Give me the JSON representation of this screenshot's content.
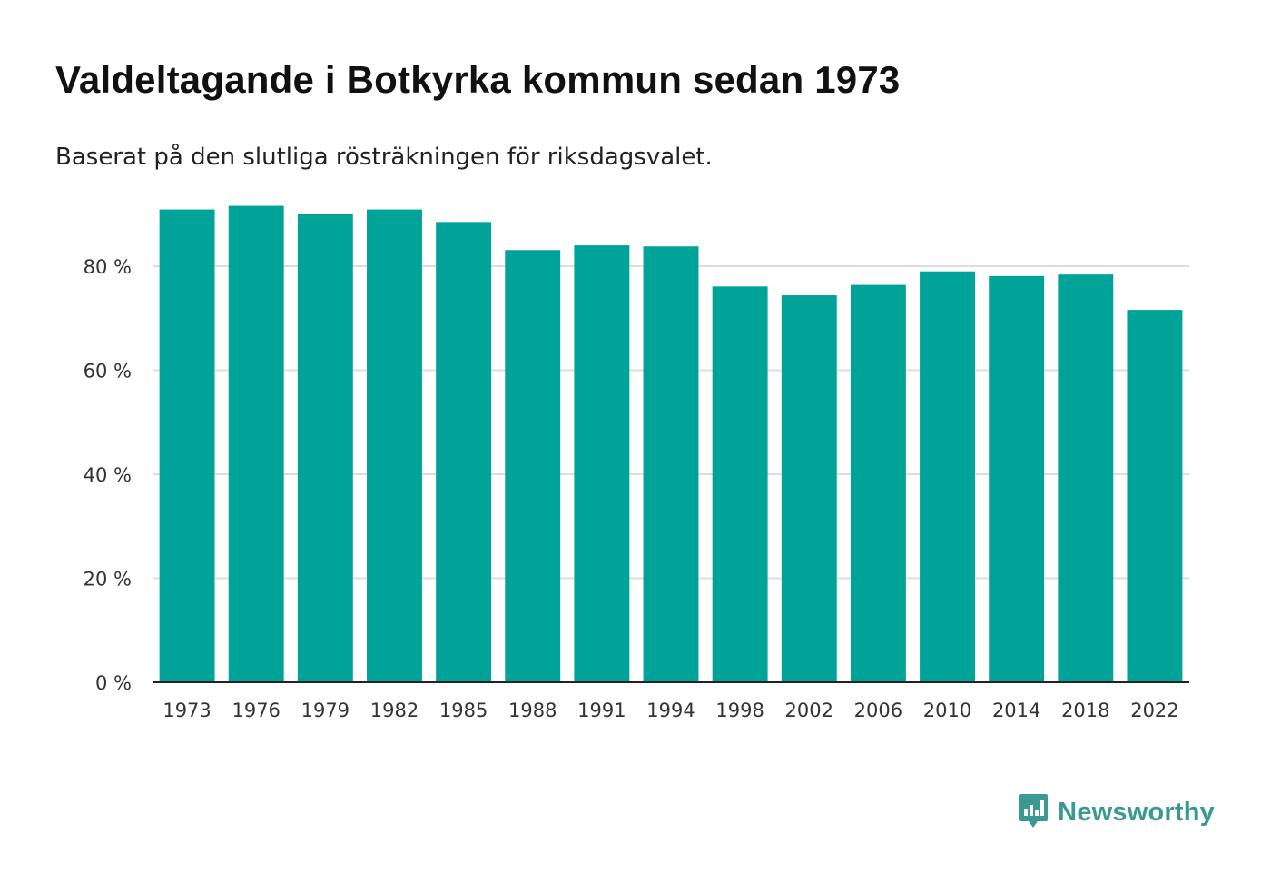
{
  "header": {
    "title": "Valdeltagande i Botkyrka kommun sedan 1973",
    "subtitle": "Baserat på den slutliga rösträkningen för riksdagsvalet."
  },
  "branding": {
    "name": "Newsworthy",
    "color": "#3a9a92"
  },
  "chart_data": {
    "type": "bar",
    "title": "Valdeltagande i Botkyrka kommun sedan 1973",
    "subtitle": "Baserat på den slutliga rösträkningen för riksdagsvalet.",
    "xlabel": "",
    "ylabel": "",
    "categories": [
      "1973",
      "1976",
      "1979",
      "1982",
      "1985",
      "1988",
      "1991",
      "1994",
      "1998",
      "2002",
      "2006",
      "2010",
      "2014",
      "2018",
      "2022"
    ],
    "values": [
      90.9,
      91.6,
      90.1,
      90.9,
      88.5,
      83.1,
      84.0,
      83.8,
      76.1,
      74.4,
      76.4,
      79.0,
      78.1,
      78.4,
      71.6
    ],
    "ylim": [
      0,
      95
    ],
    "yticks": [
      0,
      20,
      40,
      60,
      80
    ],
    "ytick_labels": [
      "0 %",
      "20 %",
      "40 %",
      "60 %",
      "80 %"
    ],
    "grid": true,
    "bar_color": "#00a398",
    "grid_color": "#dddddd",
    "axis_color": "#222222"
  }
}
